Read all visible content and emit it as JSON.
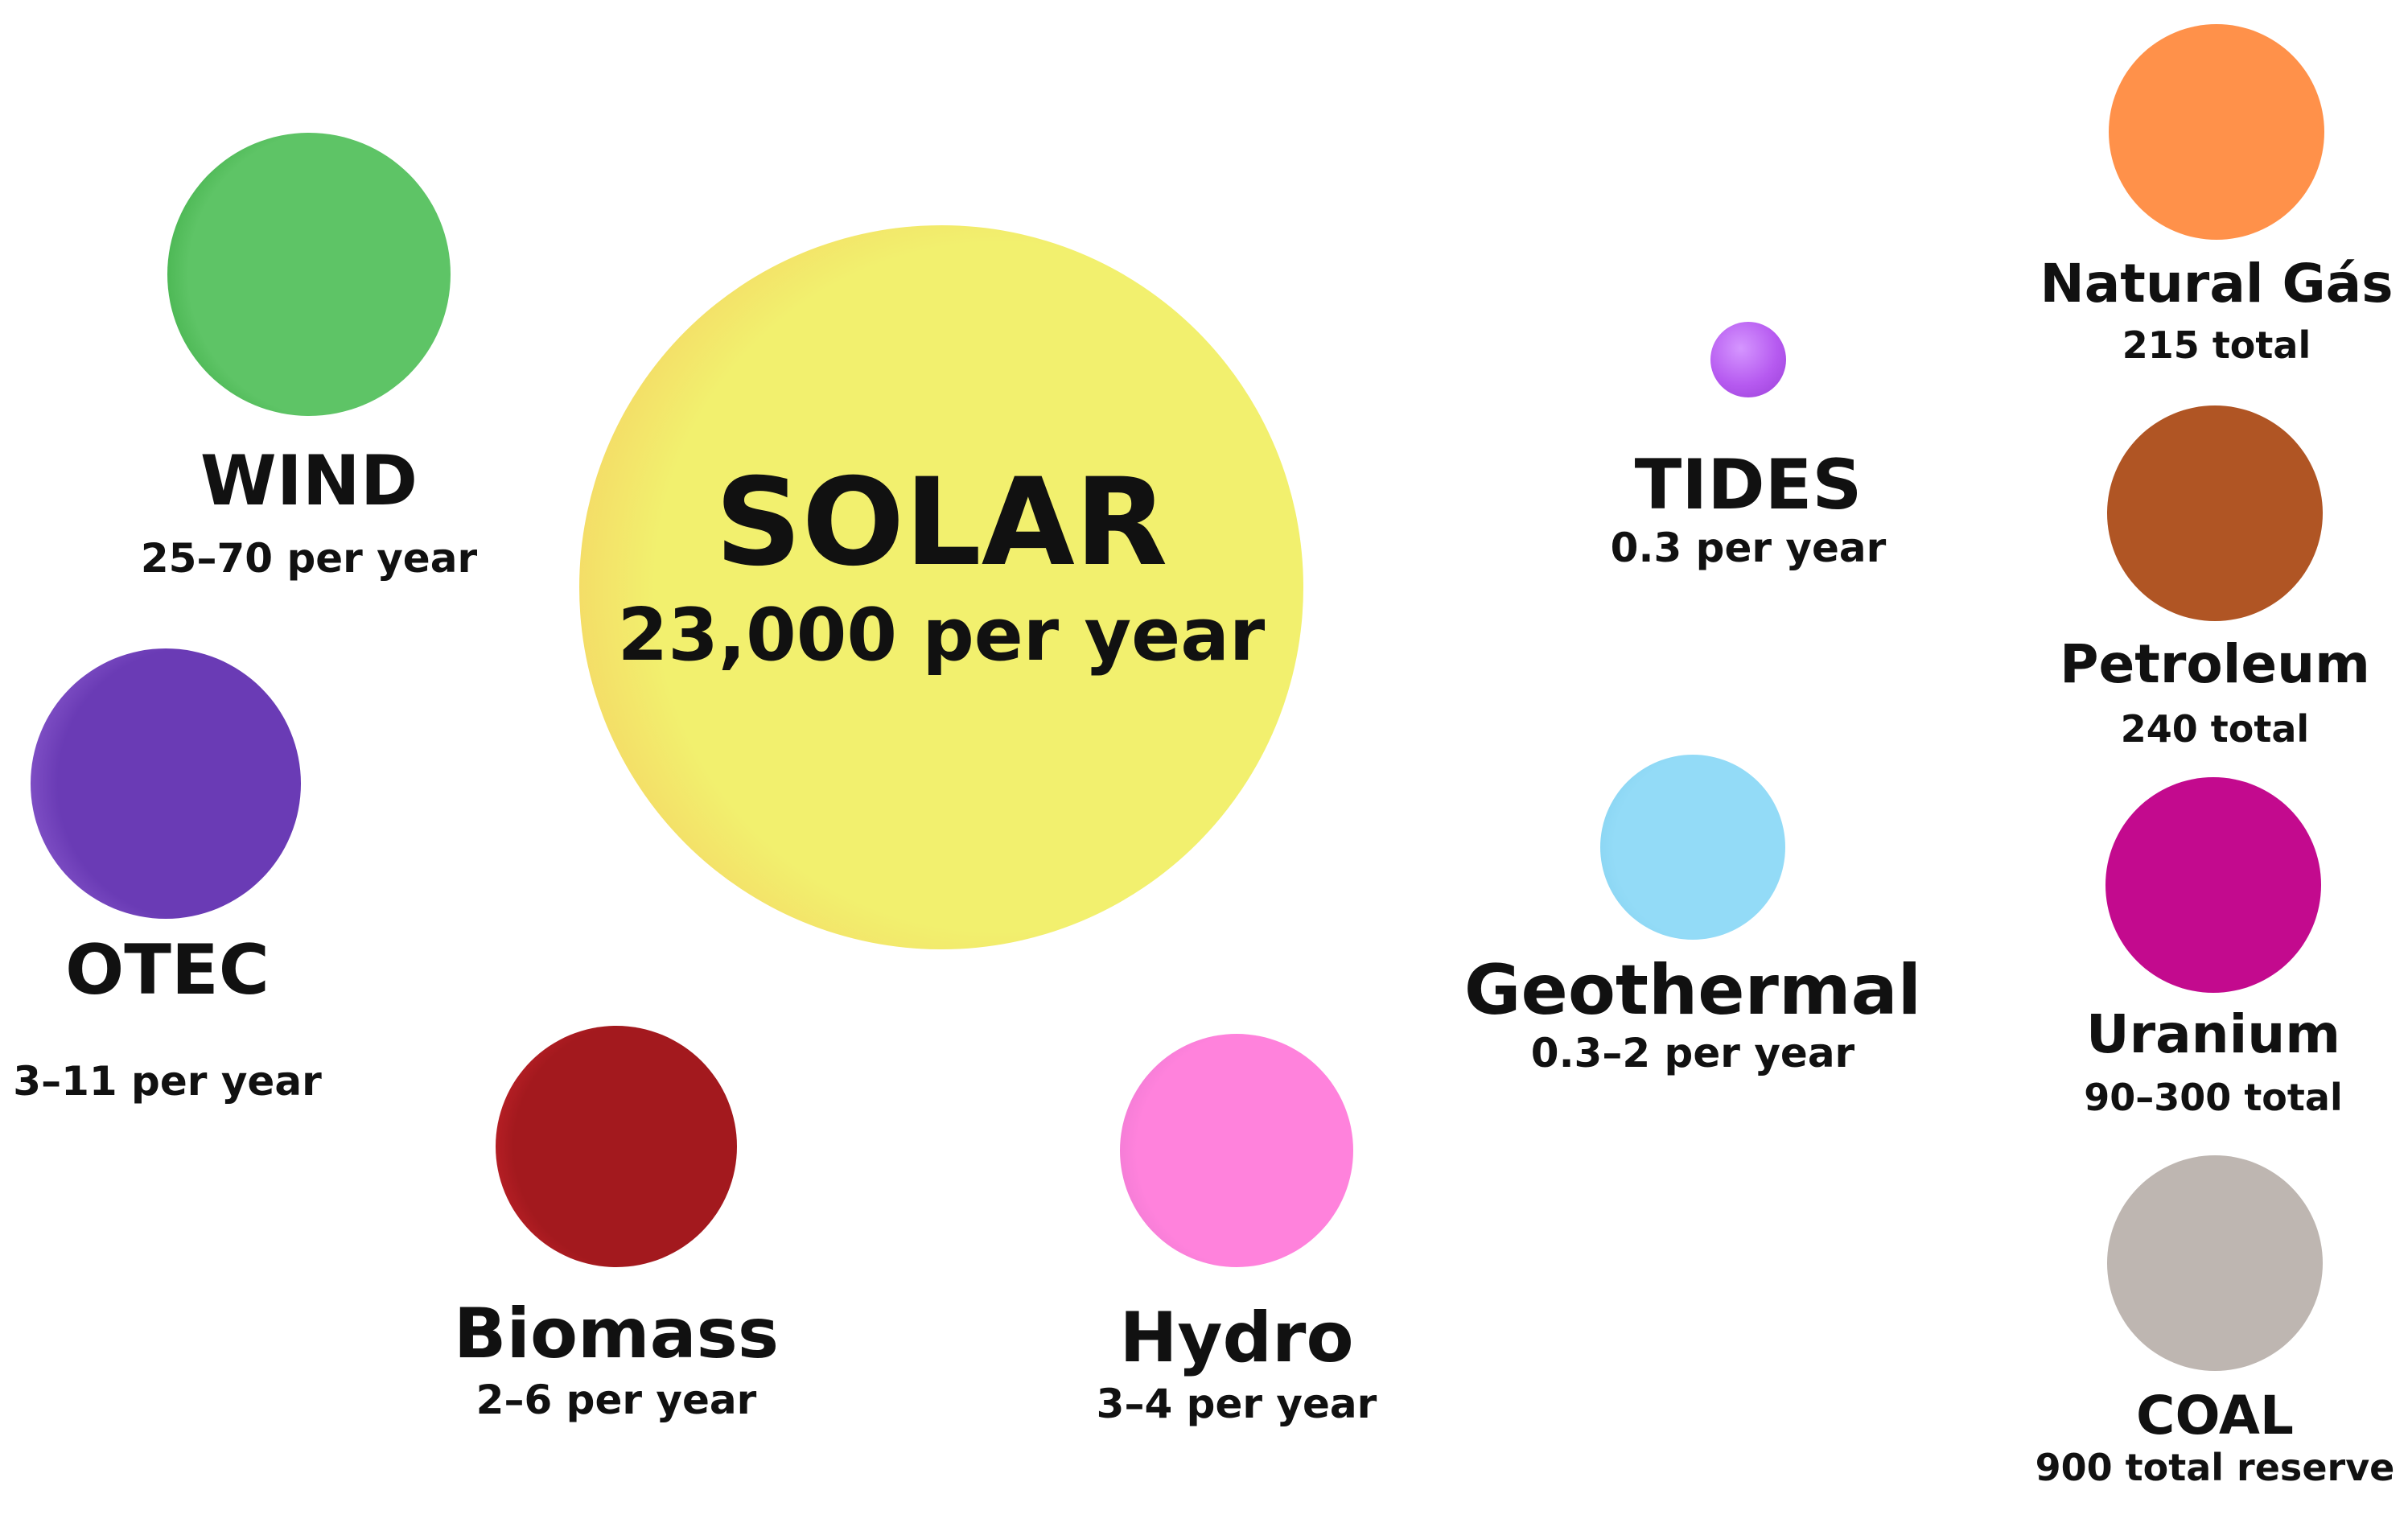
{
  "colors": {
    "text": "#111111",
    "background": "#ffffff"
  },
  "sources": {
    "solar": {
      "name": "SOLAR",
      "value": "23,000 per year",
      "color": "#F2F06E",
      "shade": "#F7BF52",
      "icon": "yellow-sphere"
    },
    "wind": {
      "name": "WIND",
      "value": "25–70 per year",
      "color": "#5EC466",
      "shade": "#1E9A2A",
      "icon": "green-sphere"
    },
    "otec": {
      "name": "OTEC",
      "value": "3–11 per year",
      "color": "#6A3BB5",
      "shade": "#A27BE0",
      "icon": "purple-sphere"
    },
    "biomass": {
      "name": "Biomass",
      "value": "2–6 per year",
      "color": "#A3191E",
      "shade": "#E23034",
      "icon": "red-sphere"
    },
    "hydro": {
      "name": "Hydro",
      "value": "3–4 per year",
      "color": "#FF82DC",
      "shade": "#D96FC6",
      "icon": "pink-sphere"
    },
    "tides": {
      "name": "TIDES",
      "value": "0.3 per year",
      "color": "#B65AF0",
      "shade": "#D596FF",
      "icon": "violet-sphere"
    },
    "geothermal": {
      "name": "Geothermal",
      "value": "0.3–2 per year",
      "color": "#93DBF7",
      "shade": "#7CCBEB",
      "icon": "lightblue-sphere"
    }
  },
  "reserves": {
    "natural_gas": {
      "name": "Natural Gás",
      "value": "215 total",
      "color": "#FF914A",
      "icon": "orange-sphere"
    },
    "petroleum": {
      "name": "Petroleum",
      "value": "240 total",
      "color": "#B05524",
      "icon": "brown-sphere"
    },
    "uranium": {
      "name": "Uranium",
      "value": "90–300 total",
      "color": "#C30A8E",
      "icon": "magenta-sphere"
    },
    "coal": {
      "name": "COAL",
      "value": "900 total reserve",
      "color": "#BEB6B1",
      "icon": "gray-sphere"
    }
  }
}
